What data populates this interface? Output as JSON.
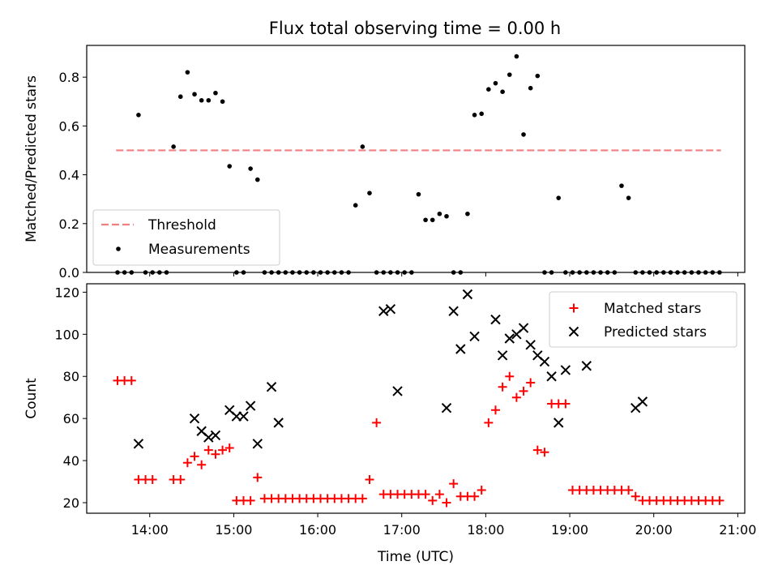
{
  "figure": {
    "title": "Flux total observing time = 0.00 h"
  },
  "chart_data": [
    {
      "type": "scatter",
      "title": "Flux total observing time = 0.00 h",
      "xlabel": "",
      "ylabel": "Matched/Predicted stars",
      "xlim": [
        "13:15",
        "21:05"
      ],
      "ylim": [
        0,
        0.93
      ],
      "y_ticks": [
        0.0,
        0.2,
        0.4,
        0.6,
        0.8
      ],
      "y_tick_labels": [
        "0.0",
        "0.2",
        "0.4",
        "0.6",
        "0.8"
      ],
      "grid": false,
      "legend_position": "lower-left",
      "series": [
        {
          "name": "Threshold",
          "style": "dashed-line",
          "color": "#f08080",
          "x": [
            "13:36",
            "20:48"
          ],
          "y": [
            0.5,
            0.5
          ]
        },
        {
          "name": "Measurements",
          "style": "dot",
          "color": "#000000",
          "x": [
            "13:37",
            "13:42",
            "13:47",
            "13:52",
            "13:57",
            "14:02",
            "14:07",
            "14:12",
            "14:17",
            "14:22",
            "14:27",
            "14:32",
            "14:37",
            "14:42",
            "14:47",
            "14:52",
            "14:57",
            "15:02",
            "15:07",
            "15:12",
            "15:17",
            "15:22",
            "15:27",
            "15:32",
            "15:37",
            "15:42",
            "15:47",
            "15:52",
            "15:57",
            "16:02",
            "16:07",
            "16:12",
            "16:17",
            "16:22",
            "16:27",
            "16:32",
            "16:37",
            "16:42",
            "16:47",
            "16:52",
            "16:57",
            "17:02",
            "17:07",
            "17:12",
            "17:17",
            "17:22",
            "17:27",
            "17:32",
            "17:37",
            "17:42",
            "17:47",
            "17:52",
            "17:57",
            "18:02",
            "18:07",
            "18:12",
            "18:17",
            "18:22",
            "18:27",
            "18:32",
            "18:37",
            "18:42",
            "18:47",
            "18:52",
            "18:57",
            "19:02",
            "19:07",
            "19:12",
            "19:17",
            "19:22",
            "19:27",
            "19:32",
            "19:37",
            "19:42",
            "19:47",
            "19:52",
            "19:57",
            "20:02",
            "20:07",
            "20:12",
            "20:17",
            "20:22",
            "20:27",
            "20:32",
            "20:37",
            "20:42",
            "20:47"
          ],
          "y": [
            0,
            0,
            0,
            0.645,
            0,
            0,
            0,
            0,
            0.515,
            0.72,
            0.82,
            0.73,
            0.705,
            0.705,
            0.735,
            0.7,
            0.435,
            0,
            0,
            0.425,
            0.38,
            0,
            0,
            0,
            0,
            0,
            0,
            0,
            0,
            0,
            0,
            0,
            0,
            0,
            0.275,
            0.515,
            0.325,
            0,
            0,
            0,
            0,
            0,
            0,
            0.32,
            0.215,
            0.215,
            0.24,
            0.23,
            0,
            0,
            0.24,
            0.645,
            0.65,
            0.75,
            0.775,
            0.74,
            0.81,
            0.885,
            0.565,
            0.755,
            0.805,
            0,
            0,
            0.305,
            0,
            0,
            0,
            0,
            0,
            0,
            0,
            0,
            0.355,
            0.305,
            0,
            0,
            0,
            0,
            0,
            0,
            0,
            0,
            0,
            0,
            0,
            0,
            0
          ]
        }
      ]
    },
    {
      "type": "scatter",
      "title": "",
      "xlabel": "Time (UTC)",
      "ylabel": "Count",
      "xlim": [
        "13:15",
        "21:05"
      ],
      "ylim": [
        15,
        124
      ],
      "x_tick_labels": [
        "14:00",
        "15:00",
        "16:00",
        "17:00",
        "18:00",
        "19:00",
        "20:00",
        "21:00"
      ],
      "y_ticks": [
        20,
        40,
        60,
        80,
        100,
        120
      ],
      "y_tick_labels": [
        "20",
        "40",
        "60",
        "80",
        "100",
        "120"
      ],
      "grid": false,
      "legend_position": "upper-right",
      "series": [
        {
          "name": "Matched stars",
          "style": "plus",
          "color": "#ff0000",
          "x": [
            "13:37",
            "13:42",
            "13:47",
            "13:52",
            "13:57",
            "14:02",
            "14:17",
            "14:22",
            "14:27",
            "14:32",
            "14:37",
            "14:42",
            "14:47",
            "14:52",
            "14:57",
            "15:02",
            "15:07",
            "15:12",
            "15:17",
            "15:22",
            "15:27",
            "15:32",
            "15:37",
            "15:42",
            "15:47",
            "15:52",
            "15:57",
            "16:02",
            "16:07",
            "16:12",
            "16:17",
            "16:22",
            "16:27",
            "16:32",
            "16:37",
            "16:42",
            "16:47",
            "16:52",
            "16:57",
            "17:02",
            "17:07",
            "17:12",
            "17:17",
            "17:22",
            "17:27",
            "17:32",
            "17:37",
            "17:42",
            "17:47",
            "17:52",
            "17:57",
            "18:02",
            "18:07",
            "18:12",
            "18:17",
            "18:22",
            "18:27",
            "18:32",
            "18:37",
            "18:42",
            "18:47",
            "18:52",
            "18:57",
            "19:02",
            "19:07",
            "19:12",
            "19:17",
            "19:22",
            "19:27",
            "19:32",
            "19:37",
            "19:42",
            "19:47",
            "19:52",
            "19:57",
            "20:02",
            "20:07",
            "20:12",
            "20:17",
            "20:22",
            "20:27",
            "20:32",
            "20:37",
            "20:42",
            "20:47"
          ],
          "y": [
            78,
            78,
            78,
            31,
            31,
            31,
            31,
            31,
            39,
            42,
            38,
            45,
            43,
            45,
            46,
            21,
            21,
            21,
            32,
            22,
            22,
            22,
            22,
            22,
            22,
            22,
            22,
            22,
            22,
            22,
            22,
            22,
            22,
            22,
            31,
            58,
            24,
            24,
            24,
            24,
            24,
            24,
            24,
            21,
            24,
            20,
            29,
            23,
            23,
            23,
            26,
            58,
            64,
            75,
            80,
            70,
            73,
            77,
            45,
            44,
            67,
            67,
            67,
            26,
            26,
            26,
            26,
            26,
            26,
            26,
            26,
            26,
            23,
            21,
            21,
            21,
            21,
            21,
            21,
            21,
            21,
            21,
            21,
            21,
            21
          ]
        },
        {
          "name": "Predicted stars",
          "style": "x",
          "color": "#000000",
          "x": [
            "13:52",
            "14:32",
            "14:37",
            "14:42",
            "14:47",
            "14:57",
            "15:02",
            "15:07",
            "15:12",
            "15:17",
            "15:27",
            "15:32",
            "16:47",
            "16:52",
            "16:57",
            "17:32",
            "17:37",
            "17:42",
            "17:47",
            "17:52",
            "18:07",
            "18:12",
            "18:17",
            "18:22",
            "18:27",
            "18:32",
            "18:37",
            "18:42",
            "18:47",
            "18:52",
            "18:57",
            "19:12",
            "19:47",
            "19:52"
          ],
          "y": [
            48,
            60,
            54,
            51,
            52,
            64,
            61,
            61,
            66,
            48,
            75,
            58,
            111,
            112,
            73,
            65,
            111,
            93,
            119,
            99,
            107,
            90,
            98,
            100,
            103,
            95,
            90,
            87,
            80,
            58,
            83,
            85,
            65,
            68
          ]
        }
      ]
    }
  ]
}
